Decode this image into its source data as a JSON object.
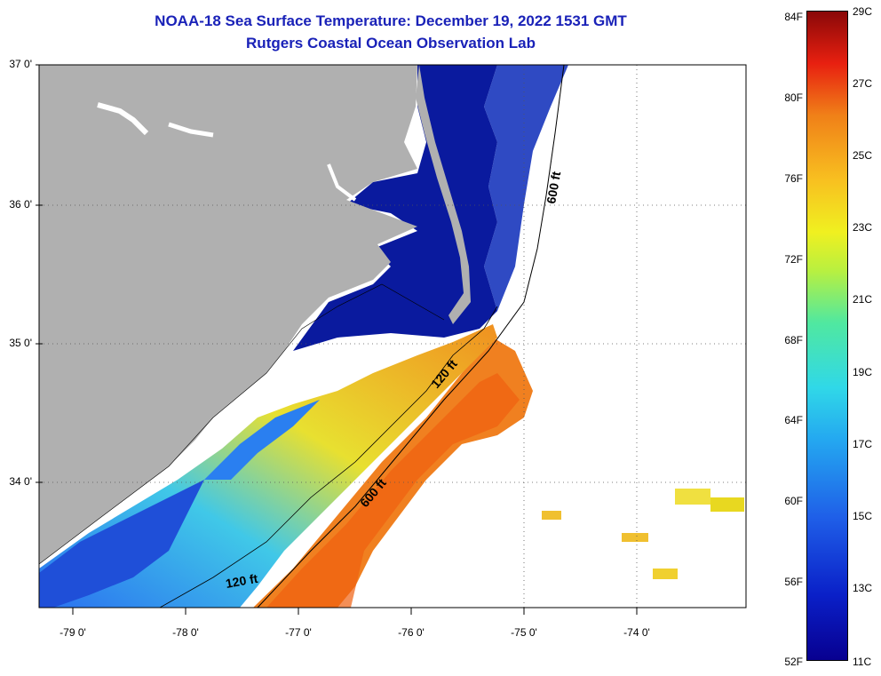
{
  "title": {
    "line1": "NOAA-18 Sea Surface Temperature:  December 19, 2022 1531 GMT",
    "line2": "Rutgers Coastal Ocean Observation Lab"
  },
  "map": {
    "lat_labels": [
      "37 0'",
      "36 0'",
      "35 0'",
      "34 0'"
    ],
    "lon_labels": [
      "-79 0'",
      "-78 0'",
      "-77 0'",
      "-76 0'",
      "-75 0'",
      "-74 0'"
    ],
    "contour_labels": [
      "600 ft",
      "120 ft",
      "600 ft",
      "120 ft"
    ],
    "colors": {
      "land": "#b0b0b0",
      "no_data": "#ffffff",
      "estuary_water": "#0a1a9e"
    }
  },
  "colorbar": {
    "fahrenheit": [
      "84F",
      "80F",
      "76F",
      "72F",
      "68F",
      "64F",
      "60F",
      "56F",
      "52F"
    ],
    "celsius": [
      "29C",
      "27C",
      "25C",
      "23C",
      "21C",
      "19C",
      "17C",
      "15C",
      "13C",
      "11C"
    ]
  }
}
